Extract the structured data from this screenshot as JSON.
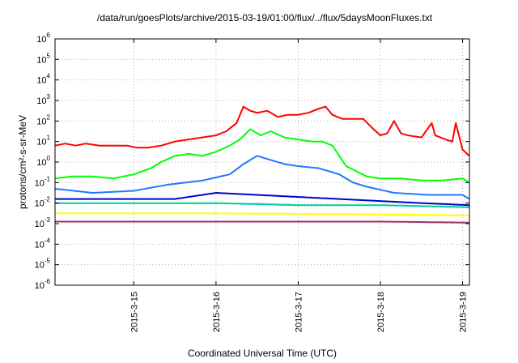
{
  "chart_data": {
    "type": "line",
    "title": "/data/run/goesPlots/archive/2015-03-19/01:00/flux/../flux/5daysMoonFluxes.txt",
    "xlabel": "Coordinated Universal Time (UTC)",
    "ylabel": "protons/cm²-s-sr-MeV",
    "yscale": "log",
    "ylim_exp": [
      -6,
      6
    ],
    "y_tick_labels": [
      "10-6",
      "10-5",
      "10-4",
      "10-3",
      "10-2",
      "10-1",
      "100",
      "101",
      "102",
      "103",
      "104",
      "105",
      "106"
    ],
    "x_start": "2015-03-14 01:00",
    "x_end": "2015-03-19 02:00",
    "x_ticks": [
      "2015-3-15",
      "2015-3-16",
      "2015-3-17",
      "2015-3-18",
      "2015-3-19"
    ],
    "grid": true,
    "series_points_log10": [
      {
        "color": "#ff0000",
        "x": [
          "2015-03-14 01:00",
          "2015-03-14 04:00",
          "2015-03-14 07:00",
          "2015-03-14 10:00",
          "2015-03-14 14:00",
          "2015-03-14 18:00",
          "2015-03-14 22:00",
          "2015-03-15 01:00",
          "2015-03-15 04:00",
          "2015-03-15 08:00",
          "2015-03-15 12:00",
          "2015-03-15 16:00",
          "2015-03-15 20:00",
          "2015-03-16 00:00",
          "2015-03-16 03:00",
          "2015-03-16 06:00",
          "2015-03-16 08:00",
          "2015-03-16 10:00",
          "2015-03-16 12:00",
          "2015-03-16 15:00",
          "2015-03-16 18:00",
          "2015-03-16 21:00",
          "2015-03-17 00:00",
          "2015-03-17 03:00",
          "2015-03-17 06:00",
          "2015-03-17 08:00",
          "2015-03-17 10:00",
          "2015-03-17 13:00",
          "2015-03-17 16:00",
          "2015-03-17 19:00",
          "2015-03-17 22:00",
          "2015-03-18 00:00",
          "2015-03-18 02:00",
          "2015-03-18 04:00",
          "2015-03-18 06:00",
          "2015-03-18 08:00",
          "2015-03-18 12:00",
          "2015-03-18 15:00",
          "2015-03-18 16:00",
          "2015-03-18 19:00",
          "2015-03-18 21:00",
          "2015-03-18 22:00",
          "2015-03-19 00:00",
          "2015-03-19 02:00"
        ],
        "y": [
          0.8,
          0.9,
          0.8,
          0.9,
          0.8,
          0.8,
          0.8,
          0.7,
          0.7,
          0.8,
          1.0,
          1.1,
          1.2,
          1.3,
          1.5,
          1.9,
          2.7,
          2.5,
          2.4,
          2.5,
          2.2,
          2.3,
          2.3,
          2.4,
          2.6,
          2.7,
          2.3,
          2.1,
          2.1,
          2.1,
          1.6,
          1.3,
          1.4,
          2.0,
          1.4,
          1.3,
          1.2,
          1.9,
          1.3,
          1.1,
          1.0,
          1.9,
          0.6,
          0.3
        ]
      },
      {
        "color": "#00ff00",
        "x": [
          "2015-03-14 01:00",
          "2015-03-14 06:00",
          "2015-03-14 12:00",
          "2015-03-14 18:00",
          "2015-03-15 00:00",
          "2015-03-15 05:00",
          "2015-03-15 08:00",
          "2015-03-15 12:00",
          "2015-03-15 16:00",
          "2015-03-15 20:00",
          "2015-03-16 00:00",
          "2015-03-16 04:00",
          "2015-03-16 07:00",
          "2015-03-16 10:00",
          "2015-03-16 13:00",
          "2015-03-16 16:00",
          "2015-03-16 20:00",
          "2015-03-17 00:00",
          "2015-03-17 04:00",
          "2015-03-17 07:00",
          "2015-03-17 10:00",
          "2015-03-17 14:00",
          "2015-03-17 20:00",
          "2015-03-18 00:00",
          "2015-03-18 06:00",
          "2015-03-18 12:00",
          "2015-03-18 18:00",
          "2015-03-19 00:00",
          "2015-03-19 02:00"
        ],
        "y": [
          -0.8,
          -0.7,
          -0.7,
          -0.8,
          -0.6,
          -0.3,
          0.0,
          0.3,
          0.4,
          0.3,
          0.5,
          0.8,
          1.1,
          1.6,
          1.3,
          1.5,
          1.2,
          1.1,
          1.0,
          1.0,
          0.8,
          -0.2,
          -0.7,
          -0.8,
          -0.8,
          -0.9,
          -0.9,
          -0.8,
          -1.0
        ]
      },
      {
        "color": "#1e78ff",
        "x": [
          "2015-03-14 01:00",
          "2015-03-14 12:00",
          "2015-03-15 00:00",
          "2015-03-15 10:00",
          "2015-03-15 20:00",
          "2015-03-16 04:00",
          "2015-03-16 08:00",
          "2015-03-16 12:00",
          "2015-03-16 16:00",
          "2015-03-16 20:00",
          "2015-03-17 00:00",
          "2015-03-17 06:00",
          "2015-03-17 12:00",
          "2015-03-17 16:00",
          "2015-03-17 20:00",
          "2015-03-18 04:00",
          "2015-03-18 14:00",
          "2015-03-19 00:00",
          "2015-03-19 02:00"
        ],
        "y": [
          -1.3,
          -1.5,
          -1.4,
          -1.1,
          -0.9,
          -0.6,
          -0.1,
          0.3,
          0.1,
          -0.1,
          -0.2,
          -0.3,
          -0.6,
          -1.0,
          -1.2,
          -1.5,
          -1.6,
          -1.6,
          -1.8
        ]
      },
      {
        "color": "#0000cc",
        "x": [
          "2015-03-14 01:00",
          "2015-03-15 00:00",
          "2015-03-15 12:00",
          "2015-03-16 00:00",
          "2015-03-16 12:00",
          "2015-03-17 00:00",
          "2015-03-17 12:00",
          "2015-03-18 00:00",
          "2015-03-18 12:00",
          "2015-03-19 02:00"
        ],
        "y": [
          -1.8,
          -1.8,
          -1.8,
          -1.5,
          -1.6,
          -1.7,
          -1.8,
          -1.9,
          -2.0,
          -2.1
        ]
      },
      {
        "color": "#00cc99",
        "x": [
          "2015-03-14 01:00",
          "2015-03-15 00:00",
          "2015-03-16 00:00",
          "2015-03-17 00:00",
          "2015-03-18 00:00",
          "2015-03-19 02:00"
        ],
        "y": [
          -2.0,
          -2.0,
          -2.0,
          -2.1,
          -2.1,
          -2.2
        ]
      },
      {
        "color": "#ffff00",
        "x": [
          "2015-03-14 01:00",
          "2015-03-16 00:00",
          "2015-03-18 00:00",
          "2015-03-19 02:00"
        ],
        "y": [
          -2.5,
          -2.5,
          -2.55,
          -2.6
        ]
      },
      {
        "color": "#993366",
        "x": [
          "2015-03-14 01:00",
          "2015-03-16 00:00",
          "2015-03-18 00:00",
          "2015-03-19 02:00"
        ],
        "y": [
          -2.9,
          -2.9,
          -2.9,
          -2.95
        ]
      }
    ]
  }
}
